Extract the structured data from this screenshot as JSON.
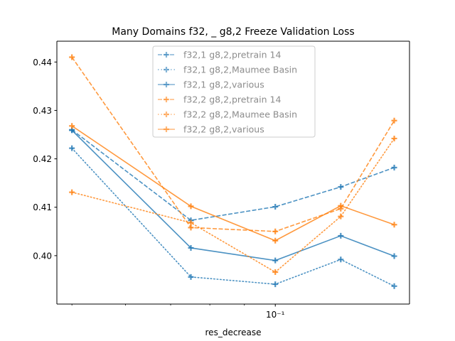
{
  "chart_data": {
    "type": "line",
    "title": "Many Domains f32, _ g8,2 Freeze Validation Loss",
    "xlabel": "res_decrease",
    "ylabel": "",
    "xscale": "log",
    "x": [
      0.05,
      0.075,
      0.1,
      0.125,
      0.15
    ],
    "xlim": [
      0.0475,
      0.158
    ],
    "ylim": [
      0.39,
      0.4443
    ],
    "x_ticks": [
      {
        "value": 0.1,
        "label": "10⁻¹"
      }
    ],
    "y_ticks": [
      0.4,
      0.41,
      0.42,
      0.43,
      0.44
    ],
    "grid": false,
    "legend_position": "top-center",
    "series": [
      {
        "name": "f32,1 g8,2,pretrain 14",
        "color": "#1f77b4",
        "style": "dashed",
        "marker": "plus",
        "values": [
          0.426,
          0.4073,
          0.4101,
          0.4142,
          0.4182
        ]
      },
      {
        "name": "f32,1 g8,2,Maumee Basin",
        "color": "#1f77b4",
        "style": "dotted",
        "marker": "plus",
        "values": [
          0.4222,
          0.3956,
          0.3941,
          0.3992,
          0.3937
        ]
      },
      {
        "name": "f32,1 g8,2,various",
        "color": "#1f77b4",
        "style": "solid",
        "marker": "plus",
        "values": [
          0.4259,
          0.4016,
          0.399,
          0.4041,
          0.3999
        ]
      },
      {
        "name": "f32,2 g8,2,pretrain 14",
        "color": "#ff7f0e",
        "style": "dashed",
        "marker": "plus",
        "values": [
          0.441,
          0.4058,
          0.405,
          0.4097,
          0.4279
        ]
      },
      {
        "name": "f32,2 g8,2,Maumee Basin",
        "color": "#ff7f0e",
        "style": "dotted",
        "marker": "plus",
        "values": [
          0.4131,
          0.4068,
          0.3966,
          0.4081,
          0.4242
        ]
      },
      {
        "name": "f32,2 g8,2,various",
        "color": "#ff7f0e",
        "style": "solid",
        "marker": "plus",
        "values": [
          0.4268,
          0.4102,
          0.4031,
          0.4103,
          0.4064
        ]
      }
    ]
  }
}
